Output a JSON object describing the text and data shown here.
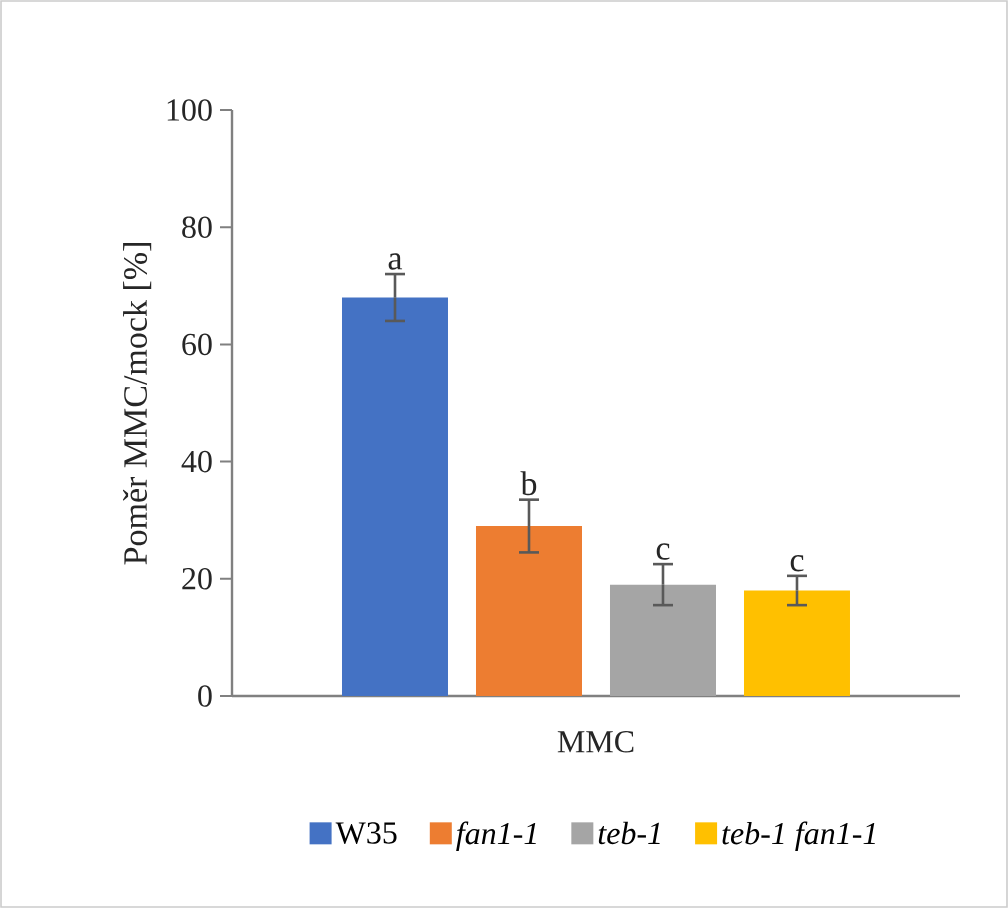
{
  "chart_data": {
    "type": "bar",
    "ylabel": "Poměr MMC/mock [%]",
    "categories": [
      "MMC"
    ],
    "series": [
      {
        "name": "W35",
        "color": "#4472c4",
        "values": [
          68
        ],
        "errors": [
          4
        ]
      },
      {
        "name": "*fan1-1*",
        "color": "#ed7d31",
        "values": [
          29
        ],
        "errors": [
          4.5
        ]
      },
      {
        "name": "*teb-1*",
        "color": "#a5a5a5",
        "values": [
          19
        ],
        "errors": [
          3.5
        ]
      },
      {
        "name": "*teb-1 fan1-1*",
        "color": "#ffc000",
        "values": [
          18
        ],
        "errors": [
          2.5
        ]
      }
    ],
    "ylim": [
      0,
      100
    ],
    "yticks": [
      0,
      20,
      40,
      60,
      80,
      100
    ],
    "legend": "bottom",
    "annotations": [
      "a",
      "b",
      "c",
      "c"
    ]
  }
}
